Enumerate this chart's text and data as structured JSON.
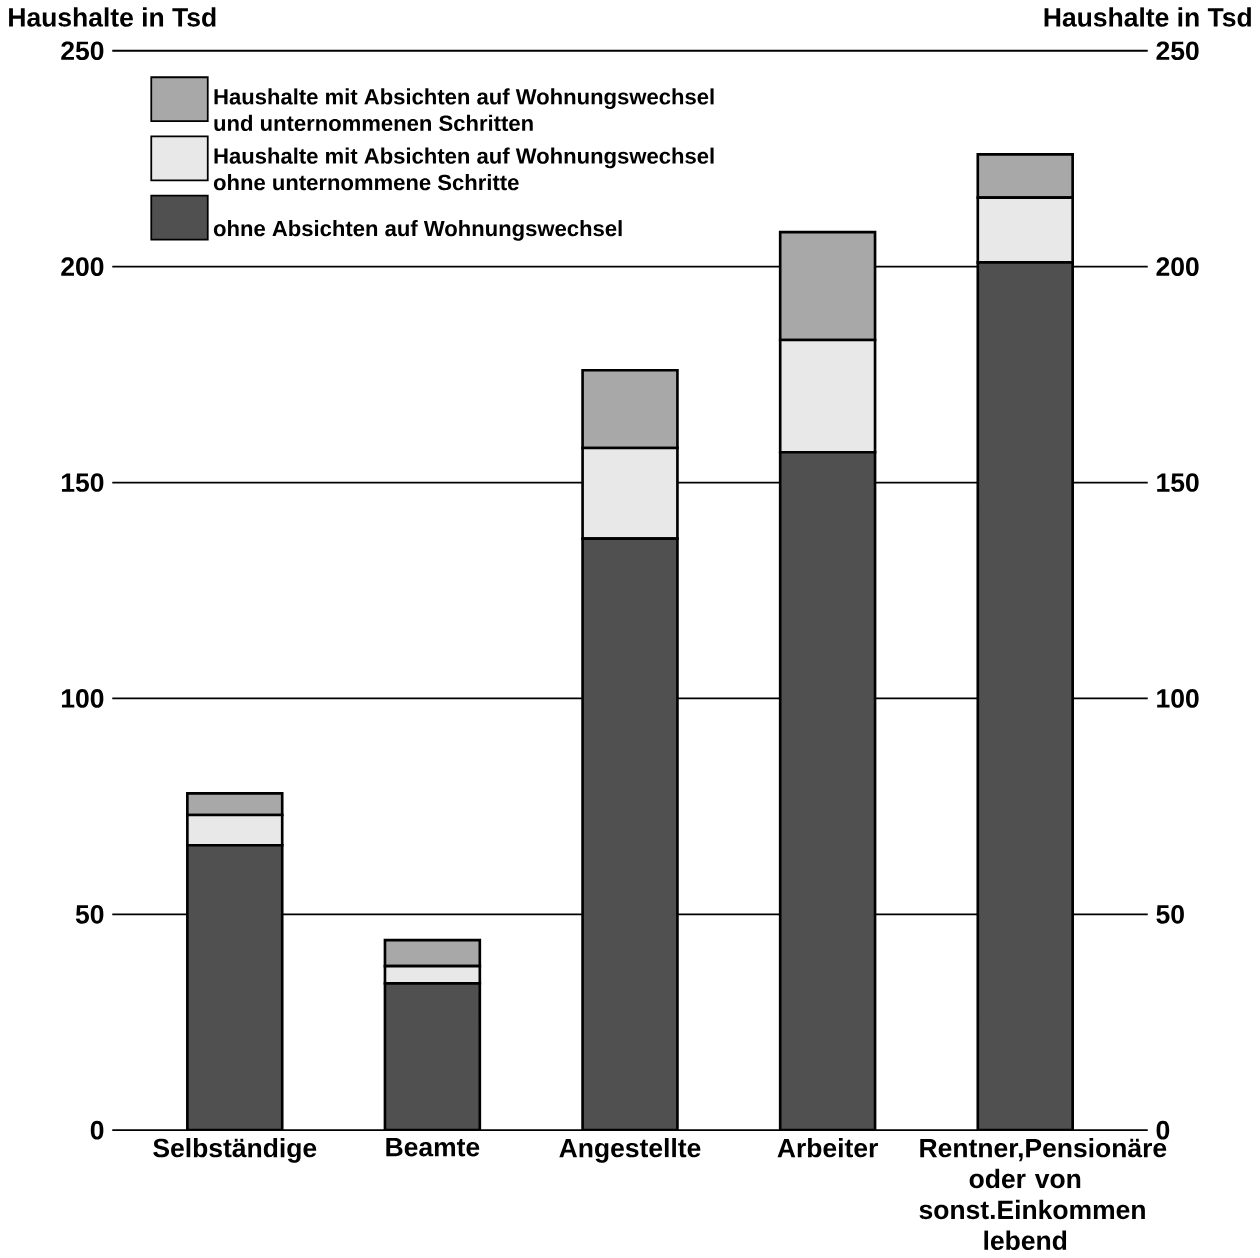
{
  "chart_data": {
    "type": "bar",
    "stacked": true,
    "ylabel": "Haushalte in Tsd",
    "y2label": "Haushalte in Tsd",
    "categories": [
      "Selbständige",
      "Beamte",
      "Angestellte",
      "Arbeiter",
      "Rentner,Pensionäre oder von sonst.Einkommen lebend"
    ],
    "series": [
      {
        "name": "ohne Absichten auf Wohnungswechsel",
        "color": "#505050",
        "values": [
          66,
          34,
          137,
          157,
          201
        ]
      },
      {
        "name": "Haushalte mit Absichten auf Wohnungswechsel ohne unternommene Schritte",
        "color": "#e8e8e8",
        "values": [
          7,
          4,
          21,
          26,
          15
        ]
      },
      {
        "name": "Haushalte mit Absichten auf Wohnungswechsel und unternommenen Schritten",
        "color": "#a8a8a8",
        "values": [
          5,
          6,
          18,
          25,
          10
        ]
      }
    ],
    "ylim": [
      0,
      250
    ],
    "yticks": [
      0,
      50,
      100,
      150,
      200,
      250
    ],
    "y2lim": [
      0,
      250
    ],
    "y2ticks": [
      0,
      50,
      100,
      150,
      200,
      250
    ],
    "grid": "y",
    "legend": "top left"
  }
}
